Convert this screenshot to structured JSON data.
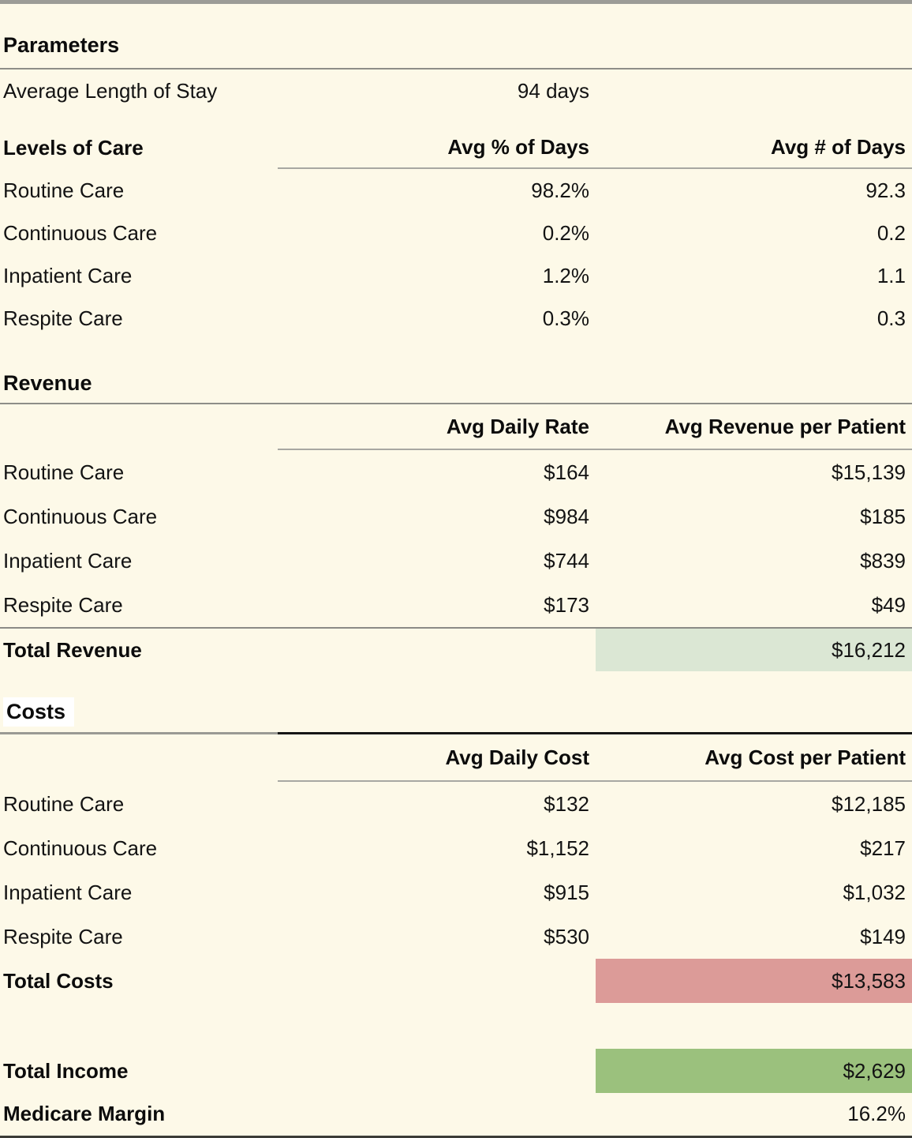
{
  "colors": {
    "background": "#fdf9e8",
    "total_revenue_highlight": "#dbe7d4",
    "total_costs_highlight": "#dc9b98",
    "total_income_highlight": "#9bc17d"
  },
  "parameters": {
    "title": "Parameters",
    "avg_length_label": "Average Length of Stay",
    "avg_length_value": "94 days",
    "table": {
      "col_label": "Levels of Care",
      "col_pct": "Avg % of Days",
      "col_days": "Avg # of Days",
      "rows": [
        {
          "label": "Routine Care",
          "pct": "98.2%",
          "days": "92.3"
        },
        {
          "label": "Continuous Care",
          "pct": "0.2%",
          "days": "0.2"
        },
        {
          "label": "Inpatient Care",
          "pct": "1.2%",
          "days": "1.1"
        },
        {
          "label": "Respite Care",
          "pct": "0.3%",
          "days": "0.3"
        }
      ]
    }
  },
  "revenue": {
    "title": "Revenue",
    "col_rate": "Avg Daily Rate",
    "col_per_patient": "Avg Revenue per Patient",
    "rows": [
      {
        "label": "Routine Care",
        "rate": "$164",
        "per_patient": "$15,139"
      },
      {
        "label": "Continuous Care",
        "rate": "$984",
        "per_patient": "$185"
      },
      {
        "label": "Inpatient Care",
        "rate": "$744",
        "per_patient": "$839"
      },
      {
        "label": "Respite Care",
        "rate": "$173",
        "per_patient": "$49"
      }
    ],
    "total_label": "Total Revenue",
    "total_value": "$16,212"
  },
  "costs": {
    "title": "Costs",
    "col_cost": "Avg Daily Cost",
    "col_per_patient": "Avg Cost per Patient",
    "rows": [
      {
        "label": "Routine Care",
        "cost": "$132",
        "per_patient": "$12,185"
      },
      {
        "label": "Continuous Care",
        "cost": "$1,152",
        "per_patient": "$217"
      },
      {
        "label": "Inpatient Care",
        "cost": "$915",
        "per_patient": "$1,032"
      },
      {
        "label": "Respite Care",
        "cost": "$530",
        "per_patient": "$149"
      }
    ],
    "total_label": "Total Costs",
    "total_value": "$13,583"
  },
  "summary": {
    "income_label": "Total Income",
    "income_value": "$2,629",
    "margin_label": "Medicare Margin",
    "margin_value": "16.2%"
  }
}
